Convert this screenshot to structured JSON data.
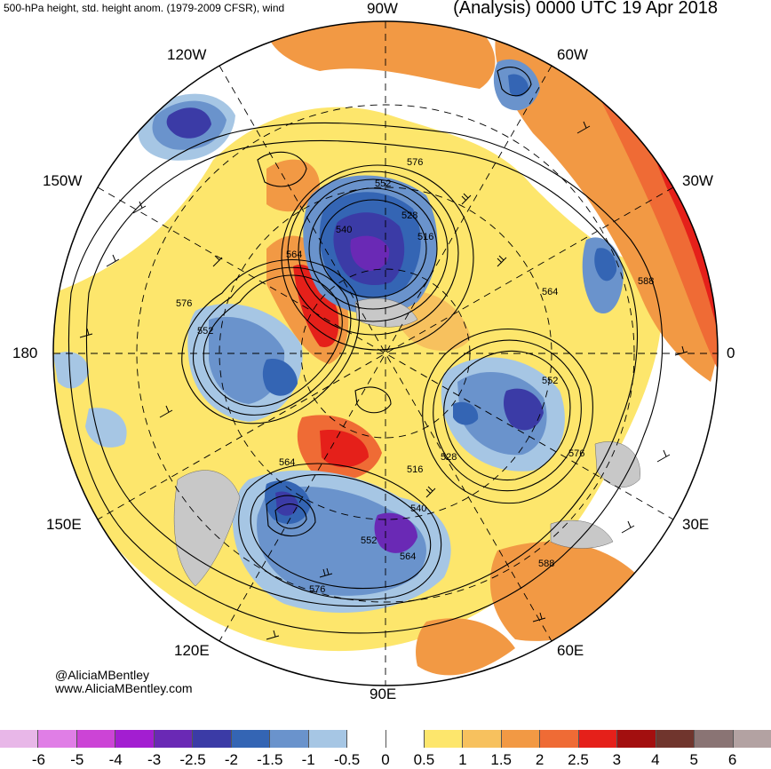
{
  "header": {
    "left": "500-hPa height, std. height anom. (1979-2009 CFSR), wind",
    "right": "(Analysis) 0000 UTC 19 Apr 2018"
  },
  "longitudes": {
    "top": "90W",
    "top_left": "120W",
    "top_right": "60W",
    "upper_left": "150W",
    "upper_right": "30W",
    "left": "180",
    "right": "0",
    "lower_left": "150E",
    "lower_right": "30E",
    "bottom_left": "120E",
    "bottom_right": "60E",
    "bottom": "90E"
  },
  "contour_labels": [
    "552",
    "576",
    "528",
    "516",
    "540",
    "564",
    "576",
    "552",
    "564",
    "588",
    "552",
    "576",
    "564",
    "516",
    "528",
    "540",
    "552",
    "564",
    "576",
    "588"
  ],
  "credits": {
    "handle": "@AliciaMBentley",
    "site": "www.AliciaMBentley.com"
  },
  "colorbar": {
    "colors": [
      "#e8b7e8",
      "#e07ee6",
      "#cc44d6",
      "#a31ed1",
      "#6a29b5",
      "#3b3ba6",
      "#3465b4",
      "#6a93cc",
      "#a6c6e4",
      "#ffffff",
      "#ffffff",
      "#fde66c",
      "#f7c15e",
      "#f29944",
      "#ef6b35",
      "#e5201a",
      "#a30f0f",
      "#70352d",
      "#8a7474",
      "#b3a2a2"
    ],
    "tick_labels": [
      "-6",
      "-5",
      "-4",
      "-3",
      "-2.5",
      "-2",
      "-1.5",
      "-1",
      "-0.5",
      "0",
      "0.5",
      "1",
      "1.5",
      "2",
      "2.5",
      "3",
      "4",
      "5",
      "6"
    ]
  }
}
